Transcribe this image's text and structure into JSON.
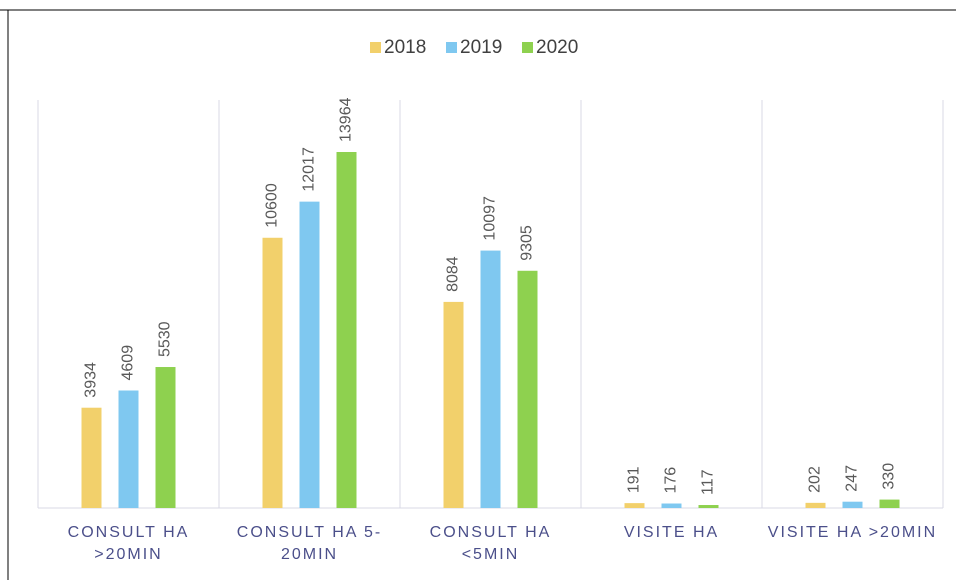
{
  "chart_data": {
    "type": "bar",
    "categories": [
      "CONSULT HA >20MIN",
      "CONSULT HA 5-20MIN",
      "CONSULT HA <5MIN",
      "VISITE HA",
      "VISITE HA >20MIN"
    ],
    "series": [
      {
        "name": "2018",
        "color": "#f2d06b",
        "values": [
          3934,
          10600,
          8084,
          191,
          202
        ]
      },
      {
        "name": "2019",
        "color": "#7fc8f0",
        "values": [
          4609,
          12017,
          10097,
          176,
          247
        ]
      },
      {
        "name": "2020",
        "color": "#8ed14f",
        "values": [
          5530,
          13964,
          9305,
          117,
          330
        ]
      }
    ],
    "legend": "top"
  }
}
